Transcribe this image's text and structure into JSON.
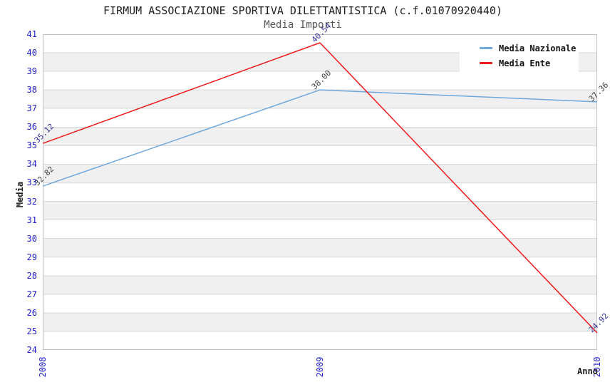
{
  "chart_data": {
    "type": "line",
    "title": "FIRMUM ASSOCIAZIONE SPORTIVA DILETTANTISTICA (c.f.01070920440)",
    "subtitle": "Media Importi",
    "xlabel": "Anno",
    "ylabel": "Media",
    "categories": [
      "2008",
      "2009",
      "2010"
    ],
    "series": [
      {
        "name": "Media Nazionale",
        "color": "#6fa8dc",
        "label_color": "#404040",
        "values": [
          32.82,
          38.0,
          37.36
        ],
        "value_labels": [
          "32.82",
          "38.00",
          "37.36"
        ]
      },
      {
        "name": "Media Ente",
        "color": "#ee1c1c",
        "label_color": "#333399",
        "values": [
          35.12,
          40.54,
          24.92
        ],
        "value_labels": [
          "35.12",
          "40.54",
          "24.92"
        ]
      }
    ],
    "ylim": [
      24,
      41
    ],
    "ytick_step": 1,
    "grid": true,
    "legend_position": "top-right",
    "band_colors": [
      "#ffffff",
      "#f0f0f0"
    ],
    "gridline_color": "#d9d9d9",
    "border_color": "#c0c0c0",
    "tick_label_color": "#2020cc"
  }
}
